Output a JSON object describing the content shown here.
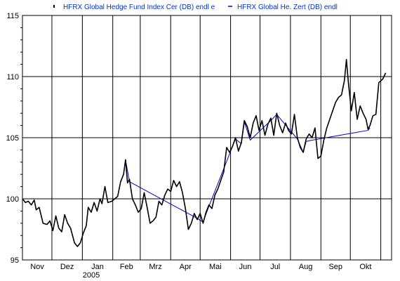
{
  "chart_data": {
    "type": "line",
    "title": "",
    "xlabel": "",
    "ylabel": "",
    "ylim": [
      95,
      115
    ],
    "y_ticks": [
      95,
      100,
      105,
      110,
      115
    ],
    "x_range": [
      "2004-11-01",
      "2005-11-12"
    ],
    "x_ticks": [
      {
        "date": "2004-11-01",
        "label": "Nov"
      },
      {
        "date": "2004-12-01",
        "label": "Dez"
      },
      {
        "date": "2005-01-01",
        "label": "Jan"
      },
      {
        "date": "2005-02-01",
        "label": "Feb"
      },
      {
        "date": "2005-03-01",
        "label": "Mrz"
      },
      {
        "date": "2005-04-01",
        "label": "Apr"
      },
      {
        "date": "2005-05-01",
        "label": "Mai"
      },
      {
        "date": "2005-06-01",
        "label": "Jun"
      },
      {
        "date": "2005-07-01",
        "label": "Jul"
      },
      {
        "date": "2005-08-01",
        "label": "Aug"
      },
      {
        "date": "2005-09-01",
        "label": "Sep"
      },
      {
        "date": "2005-10-01",
        "label": "Okt"
      }
    ],
    "year_label": "2005",
    "grid": true,
    "legend_position": "top",
    "series": [
      {
        "name": "HFRX Global Hedge Fund Index Cer (DB) endl e",
        "color": "#000000",
        "points": [
          [
            "2004-11-01",
            100.0
          ],
          [
            "2004-11-04",
            99.7
          ],
          [
            "2004-11-07",
            99.8
          ],
          [
            "2004-11-10",
            99.5
          ],
          [
            "2004-11-13",
            99.9
          ],
          [
            "2004-11-15",
            99.1
          ],
          [
            "2004-11-18",
            99.3
          ],
          [
            "2004-11-22",
            98.0
          ],
          [
            "2004-11-26",
            97.9
          ],
          [
            "2004-11-29",
            98.2
          ],
          [
            "2004-12-02",
            97.4
          ],
          [
            "2004-12-05",
            98.6
          ],
          [
            "2004-12-08",
            97.6
          ],
          [
            "2004-12-11",
            97.3
          ],
          [
            "2004-12-14",
            98.7
          ],
          [
            "2004-12-17",
            98.0
          ],
          [
            "2004-12-20",
            97.6
          ],
          [
            "2004-12-24",
            96.4
          ],
          [
            "2004-12-27",
            96.1
          ],
          [
            "2004-12-30",
            96.4
          ],
          [
            "2005-01-02",
            97.2
          ],
          [
            "2005-01-05",
            97.8
          ],
          [
            "2005-01-07",
            99.3
          ],
          [
            "2005-01-10",
            98.9
          ],
          [
            "2005-01-13",
            99.7
          ],
          [
            "2005-01-16",
            99.0
          ],
          [
            "2005-01-19",
            100.0
          ],
          [
            "2005-01-21",
            99.6
          ],
          [
            "2005-01-24",
            101.0
          ],
          [
            "2005-01-27",
            99.7
          ],
          [
            "2005-01-31",
            99.8
          ],
          [
            "2005-02-03",
            100.0
          ],
          [
            "2005-02-06",
            100.2
          ],
          [
            "2005-02-09",
            101.4
          ],
          [
            "2005-02-12",
            102.0
          ],
          [
            "2005-02-14",
            103.2
          ],
          [
            "2005-02-16",
            101.3
          ],
          [
            "2005-02-18",
            101.6
          ],
          [
            "2005-02-21",
            100.0
          ],
          [
            "2005-02-24",
            99.5
          ],
          [
            "2005-02-27",
            98.9
          ],
          [
            "2005-03-02",
            99.2
          ],
          [
            "2005-03-05",
            100.5
          ],
          [
            "2005-03-08",
            99.3
          ],
          [
            "2005-03-11",
            98.0
          ],
          [
            "2005-03-14",
            98.2
          ],
          [
            "2005-03-17",
            98.5
          ],
          [
            "2005-03-20",
            99.8
          ],
          [
            "2005-03-23",
            99.5
          ],
          [
            "2005-03-26",
            100.3
          ],
          [
            "2005-03-29",
            100.8
          ],
          [
            "2005-04-01",
            100.6
          ],
          [
            "2005-04-04",
            101.5
          ],
          [
            "2005-04-07",
            101.0
          ],
          [
            "2005-04-10",
            101.4
          ],
          [
            "2005-04-13",
            100.5
          ],
          [
            "2005-04-16",
            99.2
          ],
          [
            "2005-04-19",
            97.5
          ],
          [
            "2005-04-22",
            98.0
          ],
          [
            "2005-04-25",
            98.8
          ],
          [
            "2005-04-28",
            98.3
          ],
          [
            "2005-05-01",
            98.8
          ],
          [
            "2005-05-04",
            98.0
          ],
          [
            "2005-05-07",
            98.9
          ],
          [
            "2005-05-10",
            99.5
          ],
          [
            "2005-05-13",
            99.2
          ],
          [
            "2005-05-16",
            100.3
          ],
          [
            "2005-05-19",
            100.8
          ],
          [
            "2005-05-22",
            101.5
          ],
          [
            "2005-05-25",
            102.2
          ],
          [
            "2005-05-28",
            104.2
          ],
          [
            "2005-05-31",
            103.8
          ],
          [
            "2005-06-03",
            104.3
          ],
          [
            "2005-06-06",
            105.0
          ],
          [
            "2005-06-09",
            103.9
          ],
          [
            "2005-06-12",
            104.6
          ],
          [
            "2005-06-15",
            106.4
          ],
          [
            "2005-06-18",
            105.9
          ],
          [
            "2005-06-21",
            105.0
          ],
          [
            "2005-06-24",
            106.2
          ],
          [
            "2005-06-27",
            106.8
          ],
          [
            "2005-06-30",
            105.6
          ],
          [
            "2005-07-03",
            106.4
          ],
          [
            "2005-07-06",
            105.2
          ],
          [
            "2005-07-09",
            106.1
          ],
          [
            "2005-07-12",
            106.6
          ],
          [
            "2005-07-15",
            105.2
          ],
          [
            "2005-07-18",
            107.0
          ],
          [
            "2005-07-21",
            106.0
          ],
          [
            "2005-07-24",
            105.4
          ],
          [
            "2005-07-27",
            106.2
          ],
          [
            "2005-07-30",
            105.6
          ],
          [
            "2005-08-02",
            105.3
          ],
          [
            "2005-08-05",
            106.9
          ],
          [
            "2005-08-08",
            105.0
          ],
          [
            "2005-08-11",
            104.2
          ],
          [
            "2005-08-14",
            103.8
          ],
          [
            "2005-08-17",
            104.9
          ],
          [
            "2005-08-20",
            105.3
          ],
          [
            "2005-08-23",
            105.0
          ],
          [
            "2005-08-26",
            105.8
          ],
          [
            "2005-08-29",
            103.3
          ],
          [
            "2005-09-01",
            103.5
          ],
          [
            "2005-09-04",
            104.8
          ],
          [
            "2005-09-07",
            105.8
          ],
          [
            "2005-09-10",
            106.5
          ],
          [
            "2005-09-13",
            107.2
          ],
          [
            "2005-09-16",
            107.9
          ],
          [
            "2005-09-19",
            108.3
          ],
          [
            "2005-09-22",
            108.5
          ],
          [
            "2005-09-25",
            109.7
          ],
          [
            "2005-09-27",
            111.4
          ],
          [
            "2005-09-29",
            109.5
          ],
          [
            "2005-10-02",
            107.2
          ],
          [
            "2005-10-05",
            108.7
          ],
          [
            "2005-10-08",
            106.5
          ],
          [
            "2005-10-11",
            107.6
          ],
          [
            "2005-10-14",
            107.0
          ],
          [
            "2005-10-17",
            106.5
          ],
          [
            "2005-10-19",
            105.7
          ],
          [
            "2005-10-21",
            106.0
          ],
          [
            "2005-10-24",
            106.8
          ],
          [
            "2005-10-27",
            106.9
          ],
          [
            "2005-10-30",
            109.5
          ],
          [
            "2005-11-03",
            109.8
          ],
          [
            "2005-11-06",
            110.3
          ]
        ]
      },
      {
        "name": "HFRX Global He. Zert (DB) endl",
        "color": "#0000cc",
        "points": [
          [
            "2005-02-14",
            103.2
          ],
          [
            "2005-02-18",
            101.4
          ],
          [
            "2005-04-28",
            98.4
          ],
          [
            "2005-05-04",
            98.1
          ],
          [
            "2005-05-10",
            99.4
          ],
          [
            "2005-06-06",
            104.9
          ],
          [
            "2005-06-12",
            104.5
          ],
          [
            "2005-06-15",
            106.3
          ],
          [
            "2005-06-21",
            104.8
          ],
          [
            "2005-07-12",
            106.4
          ],
          [
            "2005-07-18",
            106.9
          ],
          [
            "2005-08-08",
            104.9
          ],
          [
            "2005-08-14",
            103.8
          ],
          [
            "2005-08-17",
            104.7
          ],
          [
            "2005-08-23",
            104.8
          ],
          [
            "2005-10-19",
            105.6
          ],
          [
            "2005-10-21",
            105.8
          ]
        ]
      }
    ]
  }
}
